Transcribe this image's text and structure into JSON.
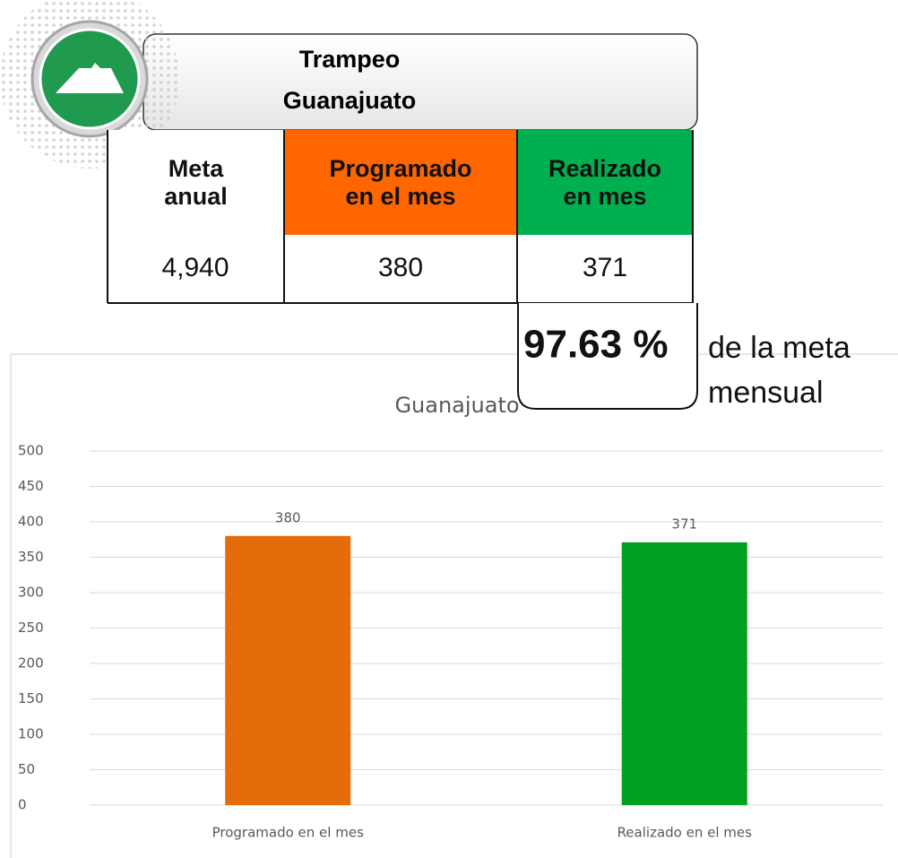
{
  "header": {
    "title_lines": [
      "Trampeo",
      "Guanajuato"
    ]
  },
  "table": {
    "headers": [
      "Meta anual",
      "Programado en el mes",
      "Realizado en mes"
    ],
    "rows": [
      [
        "4,940",
        "380",
        "371"
      ]
    ]
  },
  "summary": {
    "percent": "97.63 %",
    "note_lines": [
      "de la meta",
      "mensual"
    ]
  },
  "chart_data": {
    "type": "bar",
    "title": "Guanajuato",
    "categories": [
      "Programado en el mes",
      "Realizado en el mes"
    ],
    "values": [
      380,
      371
    ],
    "colors": [
      "#e46c0a",
      "#00a020"
    ],
    "ylim": [
      0,
      500
    ],
    "yticks": [
      0,
      50,
      100,
      150,
      200,
      250,
      300,
      350,
      400,
      450,
      500
    ],
    "grid": true
  }
}
